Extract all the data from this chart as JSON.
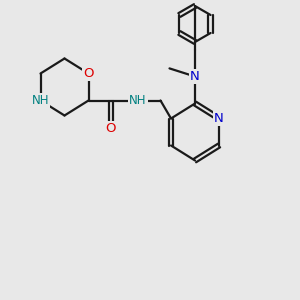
{
  "bg_color": "#e8e8e8",
  "bond_color": "#1a1a1a",
  "N_color": "#0000cc",
  "NH_color": "#008080",
  "O_color": "#dd0000",
  "line_width": 1.6,
  "font_size": 8.5,
  "fig_size": [
    3.0,
    3.0
  ],
  "dpi": 100,
  "xlim": [
    0,
    10
  ],
  "ylim": [
    0,
    10
  ]
}
